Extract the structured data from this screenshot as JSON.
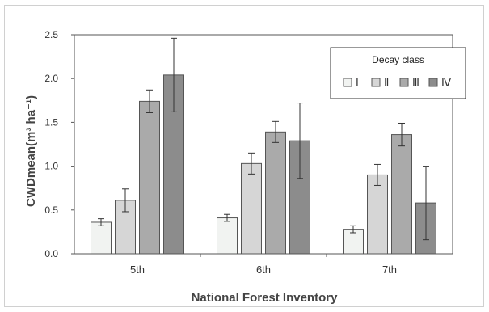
{
  "chart_data": {
    "type": "bar",
    "title": "",
    "xlabel": "National Forest Inventory",
    "ylabel": "CWDmean(m³ ha⁻¹)",
    "ylim": [
      0,
      2.5
    ],
    "yticks": [
      "0.0",
      "0.5",
      "1.0",
      "1.5",
      "2.0",
      "2.5"
    ],
    "categories": [
      "5th",
      "6th",
      "7th"
    ],
    "legend": {
      "title": "Decay class",
      "placement": "top-right"
    },
    "series": [
      {
        "name": "Ⅰ",
        "color": "#f1f3f1",
        "values": [
          0.36,
          0.41,
          0.28
        ],
        "errors": [
          0.04,
          0.04,
          0.04
        ]
      },
      {
        "name": "Ⅱ",
        "color": "#d6d6d6",
        "values": [
          0.61,
          1.03,
          0.9
        ],
        "errors": [
          0.13,
          0.12,
          0.12
        ]
      },
      {
        "name": "Ⅲ",
        "color": "#aaaaaa",
        "values": [
          1.74,
          1.39,
          1.36
        ],
        "errors": [
          0.13,
          0.12,
          0.13
        ]
      },
      {
        "name": "Ⅳ",
        "color": "#8c8c8c",
        "values": [
          2.04,
          1.29,
          0.58
        ],
        "errors": [
          0.42,
          0.43,
          0.42
        ]
      }
    ],
    "grid": false,
    "error_bars": true
  }
}
